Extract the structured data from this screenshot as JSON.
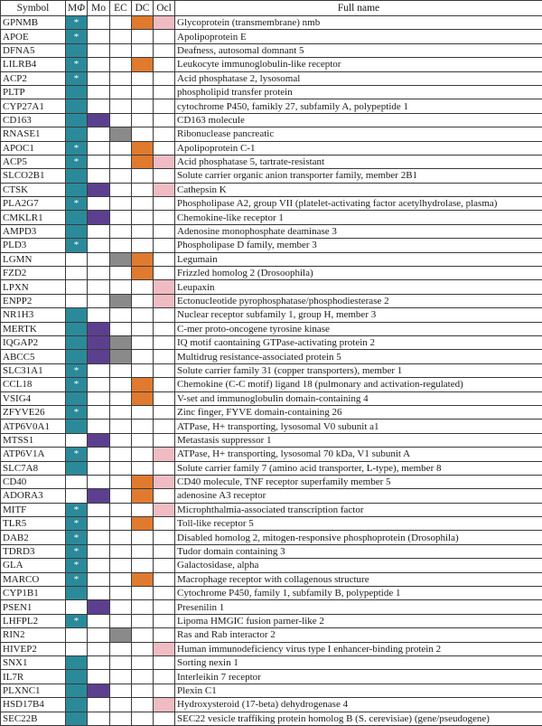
{
  "headers": {
    "symbol": "Symbol",
    "mphi_prefix": "M",
    "mphi_italic": "Φ",
    "mo": "Mo",
    "ec": "EC",
    "dc": "DC",
    "ocl": "Ocl",
    "fullname": "Full name"
  },
  "colors": {
    "mphi": "#2b8a9a",
    "mo": "#5c3f8f",
    "ec": "#8a8a8a",
    "dc": "#e07a2e",
    "ocl": "#f0bcc4"
  },
  "star": "*",
  "rows": [
    {
      "symbol": "GPNMB",
      "m": 1,
      "star": 1,
      "mo": 0,
      "ec": 0,
      "dc": 1,
      "ocl": 1,
      "name": "Glycoprotein (transmembrane) nmb"
    },
    {
      "symbol": "APOE",
      "m": 1,
      "star": 1,
      "mo": 0,
      "ec": 0,
      "dc": 0,
      "ocl": 0,
      "name": "Apolipoprotein E"
    },
    {
      "symbol": "DFNA5",
      "m": 1,
      "star": 0,
      "mo": 0,
      "ec": 0,
      "dc": 0,
      "ocl": 0,
      "name": "Deafness, autosomal domnant 5"
    },
    {
      "symbol": "LILRB4",
      "m": 1,
      "star": 1,
      "mo": 0,
      "ec": 0,
      "dc": 1,
      "ocl": 0,
      "name": "Leukocyte immunoglobulin-like receptor"
    },
    {
      "symbol": "ACP2",
      "m": 1,
      "star": 1,
      "mo": 0,
      "ec": 0,
      "dc": 0,
      "ocl": 0,
      "name": "Acid phosphatase 2, lysosomal"
    },
    {
      "symbol": "PLTP",
      "m": 1,
      "star": 0,
      "mo": 0,
      "ec": 0,
      "dc": 0,
      "ocl": 0,
      "name": "phospholipid transfer protein"
    },
    {
      "symbol": "CYP27A1",
      "m": 1,
      "star": 0,
      "mo": 0,
      "ec": 0,
      "dc": 0,
      "ocl": 0,
      "name": "cytochrome P450, famikly 27, subfamily A, polypeptide 1"
    },
    {
      "symbol": "CD163",
      "m": 1,
      "star": 0,
      "mo": 1,
      "ec": 0,
      "dc": 0,
      "ocl": 0,
      "name": "CD163 molecule"
    },
    {
      "symbol": "RNASE1",
      "m": 1,
      "star": 0,
      "mo": 0,
      "ec": 1,
      "dc": 0,
      "ocl": 0,
      "name": "Ribonuclease pancreatic"
    },
    {
      "symbol": "APOC1",
      "m": 1,
      "star": 1,
      "mo": 0,
      "ec": 0,
      "dc": 1,
      "ocl": 0,
      "name": "Apolipoprotein C-1"
    },
    {
      "symbol": "ACP5",
      "m": 1,
      "star": 1,
      "mo": 0,
      "ec": 0,
      "dc": 1,
      "ocl": 1,
      "name": "Acid phosphatase 5, tartrate-resistant"
    },
    {
      "symbol": "SLCO2B1",
      "m": 1,
      "star": 0,
      "mo": 0,
      "ec": 0,
      "dc": 0,
      "ocl": 0,
      "name": "Solute carrier organic anion transporter family, member 2B1"
    },
    {
      "symbol": "CTSK",
      "m": 1,
      "star": 0,
      "mo": 1,
      "ec": 0,
      "dc": 0,
      "ocl": 1,
      "name": "Cathepsin K"
    },
    {
      "symbol": "PLA2G7",
      "m": 1,
      "star": 1,
      "mo": 0,
      "ec": 0,
      "dc": 0,
      "ocl": 0,
      "name": "Phospholipase A2, group VII (platelet-activating factor acetylhydrolase, plasma)"
    },
    {
      "symbol": "CMKLR1",
      "m": 1,
      "star": 0,
      "mo": 1,
      "ec": 0,
      "dc": 0,
      "ocl": 0,
      "name": "Chemokine-like receptor 1"
    },
    {
      "symbol": "AMPD3",
      "m": 1,
      "star": 0,
      "mo": 0,
      "ec": 0,
      "dc": 0,
      "ocl": 0,
      "name": "Adenosine monophosphate deaminase 3"
    },
    {
      "symbol": "PLD3",
      "m": 1,
      "star": 1,
      "mo": 0,
      "ec": 0,
      "dc": 0,
      "ocl": 0,
      "name": "Phospholipase D family, member 3"
    },
    {
      "symbol": "LGMN",
      "m": 0,
      "star": 0,
      "mo": 0,
      "ec": 1,
      "dc": 1,
      "ocl": 0,
      "name": "Legumain"
    },
    {
      "symbol": "FZD2",
      "m": 0,
      "star": 0,
      "mo": 0,
      "ec": 0,
      "dc": 1,
      "ocl": 0,
      "name": "Frizzled homolog 2 (Drosoophila)"
    },
    {
      "symbol": "LPXN",
      "m": 0,
      "star": 0,
      "mo": 0,
      "ec": 0,
      "dc": 0,
      "ocl": 1,
      "name": "Leupaxin"
    },
    {
      "symbol": "ENPP2",
      "m": 0,
      "star": 0,
      "mo": 0,
      "ec": 1,
      "dc": 0,
      "ocl": 1,
      "name": "Ectonucleotide pyrophosphatase/phosphodiesterase 2"
    },
    {
      "symbol": "NR1H3",
      "m": 1,
      "star": 0,
      "mo": 0,
      "ec": 0,
      "dc": 0,
      "ocl": 0,
      "name": "Nuclear receptor subfamily 1, group H, member 3"
    },
    {
      "symbol": "MERTK",
      "m": 1,
      "star": 0,
      "mo": 1,
      "ec": 0,
      "dc": 0,
      "ocl": 0,
      "name": "C-mer proto-oncogene tyrosine kinase"
    },
    {
      "symbol": "IQGAP2",
      "m": 1,
      "star": 0,
      "mo": 1,
      "ec": 1,
      "dc": 0,
      "ocl": 0,
      "name": "IQ motif caontaining GTPase-activating protein 2"
    },
    {
      "symbol": "ABCC5",
      "m": 1,
      "star": 0,
      "mo": 1,
      "ec": 1,
      "dc": 0,
      "ocl": 0,
      "name": "Multidrug resistance-associated protein 5"
    },
    {
      "symbol": "SLC31A1",
      "m": 1,
      "star": 1,
      "mo": 0,
      "ec": 0,
      "dc": 0,
      "ocl": 0,
      "name": "Solute carrier family 31 (copper transporters), member 1"
    },
    {
      "symbol": "CCL18",
      "m": 1,
      "star": 1,
      "mo": 0,
      "ec": 0,
      "dc": 1,
      "ocl": 0,
      "name": "Chemokine (C-C motif) ligand 18 (pulmonary and activation-regulated)"
    },
    {
      "symbol": "VSIG4",
      "m": 1,
      "star": 0,
      "mo": 0,
      "ec": 0,
      "dc": 1,
      "ocl": 0,
      "name": "V-set and immunoglobulin domain-containing 4"
    },
    {
      "symbol": "ZFYVE26",
      "m": 1,
      "star": 1,
      "mo": 0,
      "ec": 0,
      "dc": 0,
      "ocl": 0,
      "name": "Zinc finger, FYVE domain-containing 26"
    },
    {
      "symbol": "ATP6V0A1",
      "m": 1,
      "star": 0,
      "mo": 0,
      "ec": 0,
      "dc": 0,
      "ocl": 0,
      "name": "ATPase, H+ transporting, lysosomal V0 subunit a1"
    },
    {
      "symbol": "MTSS1",
      "m": 0,
      "star": 0,
      "mo": 1,
      "ec": 0,
      "dc": 0,
      "ocl": 0,
      "name": "Metastasis suppressor 1"
    },
    {
      "symbol": "ATP6V1A",
      "m": 1,
      "star": 1,
      "mo": 0,
      "ec": 0,
      "dc": 0,
      "ocl": 1,
      "name": "ATPase, H+ transporting, lysosomal 70 kDa, V1 subunit A"
    },
    {
      "symbol": "SLC7A8",
      "m": 1,
      "star": 0,
      "mo": 0,
      "ec": 0,
      "dc": 0,
      "ocl": 0,
      "name": "Solute carrier family 7 (amino acid transporter, L-type), member 8"
    },
    {
      "symbol": "CD40",
      "m": 0,
      "star": 0,
      "mo": 0,
      "ec": 0,
      "dc": 1,
      "ocl": 1,
      "name": "CD40 molecule, TNF receptor superfamily member 5"
    },
    {
      "symbol": "ADORA3",
      "m": 0,
      "star": 0,
      "mo": 1,
      "ec": 0,
      "dc": 1,
      "ocl": 0,
      "name": "adenosine A3 receptor"
    },
    {
      "symbol": "MITF",
      "m": 1,
      "star": 1,
      "mo": 0,
      "ec": 0,
      "dc": 0,
      "ocl": 1,
      "name": "Microphthalmia-associated transcription factor"
    },
    {
      "symbol": "TLR5",
      "m": 1,
      "star": 1,
      "mo": 0,
      "ec": 0,
      "dc": 1,
      "ocl": 0,
      "name": "Toll-like receptor 5"
    },
    {
      "symbol": "DAB2",
      "m": 1,
      "star": 1,
      "mo": 0,
      "ec": 0,
      "dc": 0,
      "ocl": 0,
      "name": "Disabled homolog 2, mitogen-responsive phosphoprotein (Drosophila)"
    },
    {
      "symbol": "TDRD3",
      "m": 1,
      "star": 1,
      "mo": 0,
      "ec": 0,
      "dc": 0,
      "ocl": 0,
      "name": "Tudor domain containing 3"
    },
    {
      "symbol": "GLA",
      "m": 1,
      "star": 1,
      "mo": 0,
      "ec": 0,
      "dc": 0,
      "ocl": 0,
      "name": "Galactosidase, alpha"
    },
    {
      "symbol": "MARCO",
      "m": 1,
      "star": 1,
      "mo": 0,
      "ec": 0,
      "dc": 1,
      "ocl": 0,
      "name": "Macrophage receptor with collagenous structure"
    },
    {
      "symbol": "CYP1B1",
      "m": 1,
      "star": 0,
      "mo": 0,
      "ec": 0,
      "dc": 0,
      "ocl": 0,
      "name": "Cytochrome P450, family 1, subfamily B, polypeptide 1"
    },
    {
      "symbol": "PSEN1",
      "m": 0,
      "star": 0,
      "mo": 1,
      "ec": 0,
      "dc": 0,
      "ocl": 0,
      "name": "Presenilin 1"
    },
    {
      "symbol": "LHFPL2",
      "m": 1,
      "star": 1,
      "mo": 0,
      "ec": 0,
      "dc": 0,
      "ocl": 0,
      "name": "Lipoma HMGIC fusion parner-like 2"
    },
    {
      "symbol": "RIN2",
      "m": 0,
      "star": 0,
      "mo": 0,
      "ec": 1,
      "dc": 0,
      "ocl": 0,
      "name": "Ras and Rab interactor 2"
    },
    {
      "symbol": "HIVEP2",
      "m": 0,
      "star": 0,
      "mo": 0,
      "ec": 0,
      "dc": 0,
      "ocl": 1,
      "name": "Human immunodeficiency virus type I enhancer-binding protein 2"
    },
    {
      "symbol": "SNX1",
      "m": 1,
      "star": 0,
      "mo": 0,
      "ec": 0,
      "dc": 0,
      "ocl": 0,
      "name": "Sorting nexin 1"
    },
    {
      "symbol": "IL7R",
      "m": 1,
      "star": 0,
      "mo": 0,
      "ec": 0,
      "dc": 0,
      "ocl": 0,
      "name": "Interleikin 7 receptor"
    },
    {
      "symbol": "PLXNC1",
      "m": 1,
      "star": 0,
      "mo": 1,
      "ec": 0,
      "dc": 0,
      "ocl": 0,
      "name": "Plexin C1"
    },
    {
      "symbol": "HSD17B4",
      "m": 1,
      "star": 0,
      "mo": 0,
      "ec": 0,
      "dc": 0,
      "ocl": 1,
      "name": "Hydroxysteroid (17-beta) dehydrogenase 4"
    },
    {
      "symbol": "SEC22B",
      "m": 1,
      "star": 0,
      "mo": 0,
      "ec": 0,
      "dc": 0,
      "ocl": 0,
      "name": "SEC22 vesicle traffiking protein homolog B (S. cerevisiae) (gene/pseudogene)"
    }
  ]
}
